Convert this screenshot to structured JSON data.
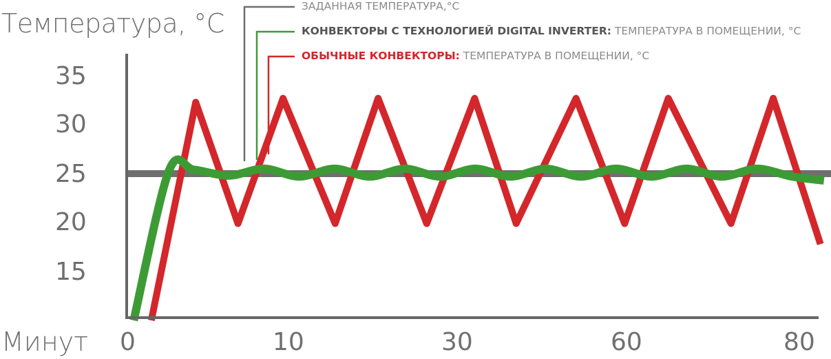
{
  "chart_data": {
    "type": "line",
    "ylabel": "Температура, °С",
    "xlabel": "Минут",
    "yticks": [
      "35",
      "30",
      "25",
      "20",
      "15"
    ],
    "xticks": [
      "0",
      "10",
      "30",
      "60",
      "80"
    ],
    "ylim": [
      10,
      37
    ],
    "grid": false,
    "legend_position": "top",
    "series": [
      {
        "name": "ЗАДАННАЯ ТЕМПЕРАТУРА,°С",
        "color": "#6f6f6f",
        "x": [
          0,
          1
        ],
        "y": [
          25,
          25
        ]
      },
      {
        "name": "КОНВЕКТОРЫ С ТЕХНОЛОГИЕЙ DIGITAL INVERTER: ТЕМПЕРАТУРА В ПОМЕЩЕНИИ, °С",
        "name_bold": "КОНВЕКТОРЫ С ТЕХНОЛОГИЕЙ DIGITAL INVERTER:",
        "name_rest": " ТЕМПЕРАТУРА В ПОМЕЩЕНИИ, °С",
        "color": "#3d9b35",
        "x": [
          0.01,
          0.06,
          0.095,
          0.145,
          0.195,
          0.245,
          0.295,
          0.345,
          0.395,
          0.445,
          0.495,
          0.545,
          0.595,
          0.645,
          0.695,
          0.745,
          0.795,
          0.845,
          0.895,
          0.945,
          0.99
        ],
        "y": [
          10,
          25.3,
          25.4,
          24.8,
          25.5,
          24.7,
          25.5,
          24.7,
          25.5,
          24.7,
          25.5,
          24.7,
          25.5,
          24.7,
          25.5,
          24.7,
          25.5,
          24.7,
          25.5,
          24.7,
          24.3
        ]
      },
      {
        "name": "ОБЫЧНЫЕ КОНВЕКТОРЫ: ТЕМПЕРАТУРА В ПОМЕЩЕНИИ, °С",
        "name_bold": "ОБЫЧНЫЕ КОНВЕКТОРЫ:",
        "name_rest": " ТЕМПЕРАТУРА В ПОМЕЩЕНИИ, °С",
        "color": "#d3272b",
        "x": [
          0.035,
          0.098,
          0.158,
          0.222,
          0.296,
          0.357,
          0.426,
          0.494,
          0.553,
          0.638,
          0.707,
          0.769,
          0.858,
          0.918,
          0.985
        ],
        "y": [
          10,
          32.3,
          19.9,
          32.7,
          19.9,
          32.7,
          19.9,
          32.7,
          19.9,
          32.7,
          19.9,
          32.7,
          19.9,
          32.7,
          17.8
        ]
      }
    ]
  }
}
